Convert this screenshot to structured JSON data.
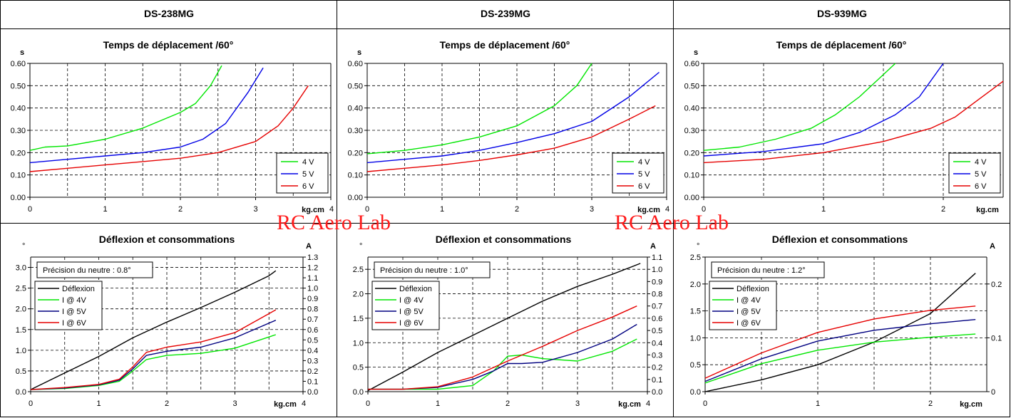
{
  "panels": [
    {
      "header": "DS-238MG"
    },
    {
      "header": "DS-239MG"
    },
    {
      "header": "DS-939MG"
    }
  ],
  "watermark": "RC Aero Lab",
  "colors": {
    "4V": "#00e600",
    "5V": "#0000e6",
    "6V": "#e60000",
    "deflexion": "#000000"
  },
  "chart_data": [
    {
      "type": "line",
      "title": "Temps de déplacement /60°",
      "ylabel": "s",
      "xlabel": "kg.cm",
      "xlim": [
        0,
        4
      ],
      "ylim": [
        0,
        0.6
      ],
      "xticks": [
        "0",
        "1",
        "2",
        "3",
        "4"
      ],
      "yticks": [
        "0.00",
        "0.10",
        "0.20",
        "0.30",
        "0.40",
        "0.50",
        "0.60"
      ],
      "legend_position": "bottom-right",
      "grid": true,
      "series": [
        {
          "name": "4 V",
          "color": "#00e600",
          "points": [
            [
              0,
              0.21
            ],
            [
              0.2,
              0.225
            ],
            [
              0.5,
              0.23
            ],
            [
              1.0,
              0.26
            ],
            [
              1.5,
              0.31
            ],
            [
              2.0,
              0.38
            ],
            [
              2.2,
              0.42
            ],
            [
              2.4,
              0.5
            ],
            [
              2.55,
              0.59
            ]
          ]
        },
        {
          "name": "5 V",
          "color": "#0000e6",
          "points": [
            [
              0,
              0.155
            ],
            [
              0.5,
              0.17
            ],
            [
              1.0,
              0.185
            ],
            [
              1.5,
              0.2
            ],
            [
              2.0,
              0.225
            ],
            [
              2.3,
              0.26
            ],
            [
              2.6,
              0.33
            ],
            [
              2.9,
              0.47
            ],
            [
              3.1,
              0.58
            ]
          ]
        },
        {
          "name": "6 V",
          "color": "#e60000",
          "points": [
            [
              0,
              0.115
            ],
            [
              0.5,
              0.13
            ],
            [
              1.0,
              0.145
            ],
            [
              1.5,
              0.16
            ],
            [
              2.0,
              0.175
            ],
            [
              2.5,
              0.2
            ],
            [
              3.0,
              0.25
            ],
            [
              3.3,
              0.32
            ],
            [
              3.5,
              0.4
            ],
            [
              3.7,
              0.5
            ]
          ]
        }
      ]
    },
    {
      "type": "line",
      "title": "Temps de déplacement /60°",
      "ylabel": "s",
      "xlabel": "kg.cm",
      "xlim": [
        0,
        4
      ],
      "ylim": [
        0,
        0.6
      ],
      "xticks": [
        "0",
        "1",
        "2",
        "3",
        "4"
      ],
      "yticks": [
        "0.00",
        "0.10",
        "0.20",
        "0.30",
        "0.40",
        "0.50",
        "0.60"
      ],
      "legend_position": "bottom-right",
      "grid": true,
      "series": [
        {
          "name": "4 V",
          "color": "#00e600",
          "points": [
            [
              0,
              0.195
            ],
            [
              0.5,
              0.21
            ],
            [
              1.0,
              0.235
            ],
            [
              1.5,
              0.27
            ],
            [
              2.0,
              0.32
            ],
            [
              2.5,
              0.41
            ],
            [
              2.8,
              0.5
            ],
            [
              3.0,
              0.6
            ]
          ]
        },
        {
          "name": "5 V",
          "color": "#0000e6",
          "points": [
            [
              0,
              0.155
            ],
            [
              0.5,
              0.17
            ],
            [
              1.0,
              0.185
            ],
            [
              1.5,
              0.21
            ],
            [
              2.0,
              0.245
            ],
            [
              2.5,
              0.285
            ],
            [
              3.0,
              0.34
            ],
            [
              3.5,
              0.45
            ],
            [
              3.9,
              0.56
            ]
          ]
        },
        {
          "name": "6 V",
          "color": "#e60000",
          "points": [
            [
              0,
              0.115
            ],
            [
              0.5,
              0.13
            ],
            [
              1.0,
              0.145
            ],
            [
              1.5,
              0.165
            ],
            [
              2.0,
              0.19
            ],
            [
              2.5,
              0.22
            ],
            [
              3.0,
              0.27
            ],
            [
              3.5,
              0.35
            ],
            [
              3.85,
              0.41
            ]
          ]
        }
      ]
    },
    {
      "type": "line",
      "title": "Temps de déplacement /60°",
      "ylabel": "s",
      "xlabel": "kg.cm",
      "xlim": [
        0,
        2.5
      ],
      "ylim": [
        0,
        0.6
      ],
      "xticks": [
        "0",
        "1",
        "2"
      ],
      "yticks": [
        "0.00",
        "0.10",
        "0.20",
        "0.30",
        "0.40",
        "0.50",
        "0.60"
      ],
      "legend_position": "bottom-right",
      "grid": true,
      "series": [
        {
          "name": "4 V",
          "color": "#00e600",
          "points": [
            [
              0,
              0.21
            ],
            [
              0.3,
              0.225
            ],
            [
              0.6,
              0.26
            ],
            [
              0.9,
              0.31
            ],
            [
              1.1,
              0.37
            ],
            [
              1.3,
              0.45
            ],
            [
              1.5,
              0.55
            ],
            [
              1.6,
              0.6
            ]
          ]
        },
        {
          "name": "5 V",
          "color": "#0000e6",
          "points": [
            [
              0,
              0.185
            ],
            [
              0.5,
              0.205
            ],
            [
              1.0,
              0.24
            ],
            [
              1.3,
              0.29
            ],
            [
              1.6,
              0.37
            ],
            [
              1.8,
              0.45
            ],
            [
              2.0,
              0.6
            ]
          ]
        },
        {
          "name": "6 V",
          "color": "#e60000",
          "points": [
            [
              0,
              0.155
            ],
            [
              0.5,
              0.17
            ],
            [
              1.0,
              0.2
            ],
            [
              1.5,
              0.25
            ],
            [
              1.9,
              0.31
            ],
            [
              2.1,
              0.36
            ],
            [
              2.3,
              0.44
            ],
            [
              2.5,
              0.52
            ]
          ]
        }
      ]
    },
    {
      "type": "line",
      "title": "Déflexion et consommations",
      "ylabel": "°",
      "y2label": "A",
      "xlabel": "kg.cm",
      "note": "Précision du neutre : 0.8°",
      "xlim": [
        0,
        4
      ],
      "ylim": [
        0,
        3.25
      ],
      "y2lim": [
        0,
        1.3
      ],
      "xticks": [
        "0",
        "1",
        "2",
        "3",
        "4"
      ],
      "yticks": [
        "0.0",
        "0.5",
        "1.0",
        "1.5",
        "2.0",
        "2.5",
        "3.0"
      ],
      "y2ticks": [
        "0.0",
        "0.1",
        "0.2",
        "0.3",
        "0.4",
        "0.5",
        "0.6",
        "0.7",
        "0.8",
        "0.9",
        "1.0",
        "1.1",
        "1.2",
        "1.3"
      ],
      "legend_position": "top-left",
      "grid": true,
      "series": [
        {
          "name": "Déflexion",
          "axis": "left",
          "color": "#000000",
          "points": [
            [
              0,
              0.05
            ],
            [
              0.5,
              0.45
            ],
            [
              1.0,
              0.85
            ],
            [
              1.5,
              1.3
            ],
            [
              2.0,
              1.68
            ],
            [
              2.5,
              2.03
            ],
            [
              3.0,
              2.4
            ],
            [
              3.5,
              2.8
            ],
            [
              3.6,
              2.92
            ]
          ]
        },
        {
          "name": "I @ 4V",
          "axis": "right",
          "color": "#00e600",
          "points": [
            [
              0,
              0.02
            ],
            [
              0.5,
              0.03
            ],
            [
              1.0,
              0.06
            ],
            [
              1.3,
              0.1
            ],
            [
              1.5,
              0.2
            ],
            [
              1.7,
              0.31
            ],
            [
              2.0,
              0.35
            ],
            [
              2.5,
              0.37
            ],
            [
              3.0,
              0.42
            ],
            [
              3.6,
              0.55
            ]
          ]
        },
        {
          "name": "I @ 5V",
          "axis": "right",
          "color": "#000080",
          "points": [
            [
              0,
              0.02
            ],
            [
              0.5,
              0.035
            ],
            [
              1.0,
              0.065
            ],
            [
              1.3,
              0.11
            ],
            [
              1.5,
              0.22
            ],
            [
              1.7,
              0.35
            ],
            [
              2.0,
              0.39
            ],
            [
              2.5,
              0.43
            ],
            [
              3.0,
              0.52
            ],
            [
              3.6,
              0.69
            ]
          ]
        },
        {
          "name": "I @ 6V",
          "axis": "right",
          "color": "#e60000",
          "points": [
            [
              0,
              0.02
            ],
            [
              0.5,
              0.04
            ],
            [
              1.0,
              0.07
            ],
            [
              1.3,
              0.12
            ],
            [
              1.5,
              0.24
            ],
            [
              1.7,
              0.38
            ],
            [
              2.0,
              0.43
            ],
            [
              2.5,
              0.48
            ],
            [
              3.0,
              0.57
            ],
            [
              3.6,
              0.79
            ]
          ]
        }
      ]
    },
    {
      "type": "line",
      "title": "Déflexion et consommations",
      "ylabel": "°",
      "y2label": "A",
      "xlabel": "kg.cm",
      "note": "Précision du neutre : 1.0°",
      "xlim": [
        0,
        4
      ],
      "ylim": [
        0,
        2.75
      ],
      "y2lim": [
        0,
        1.1
      ],
      "xticks": [
        "0",
        "1",
        "2",
        "3",
        "4"
      ],
      "yticks": [
        "0.0",
        "0.5",
        "1.0",
        "1.5",
        "2.0",
        "2.5"
      ],
      "y2ticks": [
        "0.0",
        "0.1",
        "0.2",
        "0.3",
        "0.4",
        "0.5",
        "0.6",
        "0.7",
        "0.8",
        "0.9",
        "1.0",
        "1.1"
      ],
      "legend_position": "top-left",
      "grid": true,
      "series": [
        {
          "name": "Déflexion",
          "axis": "left",
          "color": "#000000",
          "points": [
            [
              0,
              0.02
            ],
            [
              0.5,
              0.4
            ],
            [
              1.0,
              0.8
            ],
            [
              1.5,
              1.15
            ],
            [
              2.0,
              1.5
            ],
            [
              2.5,
              1.85
            ],
            [
              3.0,
              2.15
            ],
            [
              3.5,
              2.4
            ],
            [
              3.9,
              2.62
            ]
          ]
        },
        {
          "name": "I @ 4V",
          "axis": "right",
          "color": "#00e600",
          "points": [
            [
              0,
              0.02
            ],
            [
              0.5,
              0.02
            ],
            [
              1.0,
              0.02
            ],
            [
              1.5,
              0.05
            ],
            [
              1.8,
              0.17
            ],
            [
              2.0,
              0.29
            ],
            [
              2.2,
              0.3
            ],
            [
              2.5,
              0.27
            ],
            [
              3.0,
              0.25
            ],
            [
              3.5,
              0.33
            ],
            [
              3.85,
              0.43
            ]
          ]
        },
        {
          "name": "I @ 5V",
          "axis": "right",
          "color": "#000080",
          "points": [
            [
              0,
              0.02
            ],
            [
              0.5,
              0.02
            ],
            [
              1.0,
              0.035
            ],
            [
              1.5,
              0.1
            ],
            [
              1.8,
              0.17
            ],
            [
              2.0,
              0.23
            ],
            [
              2.2,
              0.23
            ],
            [
              2.5,
              0.24
            ],
            [
              3.0,
              0.32
            ],
            [
              3.5,
              0.43
            ],
            [
              3.85,
              0.55
            ]
          ]
        },
        {
          "name": "I @ 6V",
          "axis": "right",
          "color": "#e60000",
          "points": [
            [
              0,
              0.02
            ],
            [
              0.5,
              0.02
            ],
            [
              1.0,
              0.04
            ],
            [
              1.5,
              0.12
            ],
            [
              2.0,
              0.25
            ],
            [
              2.5,
              0.37
            ],
            [
              3.0,
              0.5
            ],
            [
              3.5,
              0.61
            ],
            [
              3.85,
              0.7
            ]
          ]
        }
      ]
    },
    {
      "type": "line",
      "title": "Déflexion et consommations",
      "ylabel": "°",
      "y2label": "A",
      "xlabel": "kg.cm",
      "note": "Précision du neutre : 1.2°",
      "xlim": [
        0,
        2.5
      ],
      "ylim": [
        0,
        2.5
      ],
      "y2lim": [
        0,
        0.25
      ],
      "xticks": [
        "0",
        "1",
        "2"
      ],
      "yticks": [
        "0.0",
        "0.5",
        "1.0",
        "1.5",
        "2.0",
        "2.5"
      ],
      "y2ticks": [
        "0",
        "0.1",
        "0.2"
      ],
      "legend_position": "top-left",
      "grid": true,
      "series": [
        {
          "name": "Déflexion",
          "axis": "left",
          "color": "#000000",
          "points": [
            [
              0,
              0.0
            ],
            [
              0.5,
              0.22
            ],
            [
              1.0,
              0.5
            ],
            [
              1.5,
              0.92
            ],
            [
              2.0,
              1.45
            ],
            [
              2.4,
              2.2
            ]
          ]
        },
        {
          "name": "I @ 4V",
          "axis": "right",
          "color": "#00e600",
          "points": [
            [
              0,
              0.016
            ],
            [
              0.5,
              0.052
            ],
            [
              1.0,
              0.077
            ],
            [
              1.5,
              0.092
            ],
            [
              2.0,
              0.101
            ],
            [
              2.4,
              0.107
            ]
          ]
        },
        {
          "name": "I @ 5V",
          "axis": "right",
          "color": "#000080",
          "points": [
            [
              0,
              0.019
            ],
            [
              0.5,
              0.061
            ],
            [
              1.0,
              0.094
            ],
            [
              1.5,
              0.114
            ],
            [
              2.0,
              0.126
            ],
            [
              2.4,
              0.134
            ]
          ]
        },
        {
          "name": "I @ 6V",
          "axis": "right",
          "color": "#e60000",
          "points": [
            [
              0,
              0.025
            ],
            [
              0.5,
              0.072
            ],
            [
              1.0,
              0.11
            ],
            [
              1.5,
              0.135
            ],
            [
              2.0,
              0.151
            ],
            [
              2.4,
              0.159
            ]
          ]
        }
      ]
    }
  ]
}
